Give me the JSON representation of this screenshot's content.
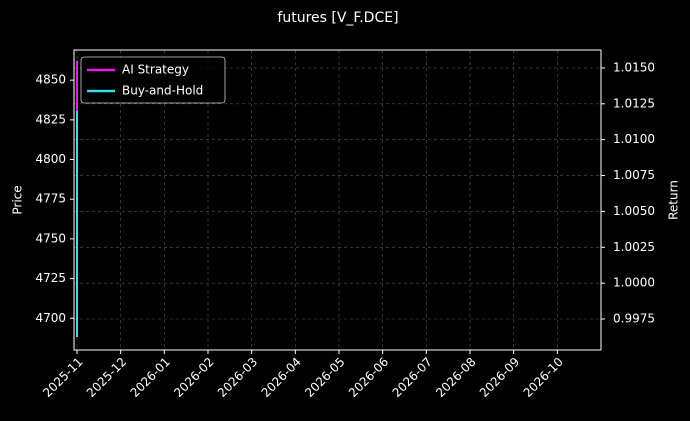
{
  "chart_data": {
    "type": "line",
    "title": "futures [V_F.DCE]",
    "ylabel": "Price",
    "y2label": "Return",
    "x": [
      "2025-11",
      "2025-11",
      "2025-11"
    ],
    "xticks": [
      "2025-11",
      "2025-12",
      "2026-01",
      "2026-02",
      "2026-03",
      "2026-04",
      "2026-05",
      "2026-06",
      "2026-07",
      "2026-08",
      "2026-09",
      "2026-10"
    ],
    "xlim": [
      "2025-11",
      "2026-11"
    ],
    "ylim": [
      4680,
      4869
    ],
    "yticks": [
      4700,
      4725,
      4750,
      4775,
      4800,
      4825,
      4850
    ],
    "y2lim": [
      0.99534,
      1.01625
    ],
    "y2ticks": [
      0.9975,
      {
        "value": 1.0,
        "label": "1.0000"
      },
      1.0025,
      {
        "value": 1.005,
        "label": "1.0050"
      },
      1.0075,
      {
        "value": 1.01,
        "label": "1.0100"
      },
      1.0125,
      {
        "value": 1.015,
        "label": "1.0150"
      }
    ],
    "grid": true,
    "legend": "upper left",
    "series": [
      {
        "name": "AI Strategy",
        "color": "#e619e6",
        "axis": "y2",
        "values": [
          1.0,
          1.0155,
          1.01
        ]
      },
      {
        "name": "Buy-and-Hold",
        "color": "#33e0e8",
        "axis": "y2",
        "values": [
          1.0,
          0.99625,
          1.012
        ]
      }
    ]
  }
}
